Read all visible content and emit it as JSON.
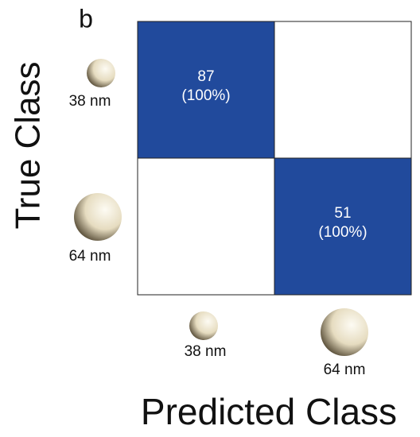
{
  "chart_data": {
    "type": "confusion-matrix",
    "panel_label": "b",
    "x_label": "Predicted Class",
    "y_label": "True Class",
    "x_categories": [
      "38 nm",
      "64 nm"
    ],
    "y_categories": [
      "38 nm",
      "64 nm"
    ],
    "values": [
      [
        87,
        0
      ],
      [
        0,
        51
      ]
    ],
    "value_labels": [
      [
        "(100%)",
        null
      ],
      [
        null,
        "(100%)"
      ]
    ],
    "color": "#214a9c"
  }
}
